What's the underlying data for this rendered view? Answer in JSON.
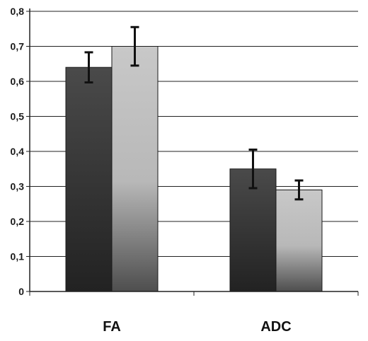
{
  "chart_data": {
    "type": "bar",
    "categories": [
      "FA",
      "ADC"
    ],
    "series": [
      {
        "values": [
          0.64,
          0.35
        ],
        "error": [
          0.043,
          0.055
        ],
        "color_top": "#4a4a4a",
        "color_bottom": "#222222"
      },
      {
        "values": [
          0.7,
          0.29
        ],
        "error": [
          0.055,
          0.027
        ],
        "color_top": "#c4c4c4",
        "color_bottom": "#5a5a5a"
      }
    ],
    "ylim": [
      0,
      0.8
    ],
    "yticks": [
      "0",
      "0,1",
      "0,2",
      "0,3",
      "0,4",
      "0,5",
      "0,6",
      "0,7",
      "0,8"
    ],
    "grid": true,
    "title": "",
    "xlabel": "",
    "ylabel": ""
  }
}
